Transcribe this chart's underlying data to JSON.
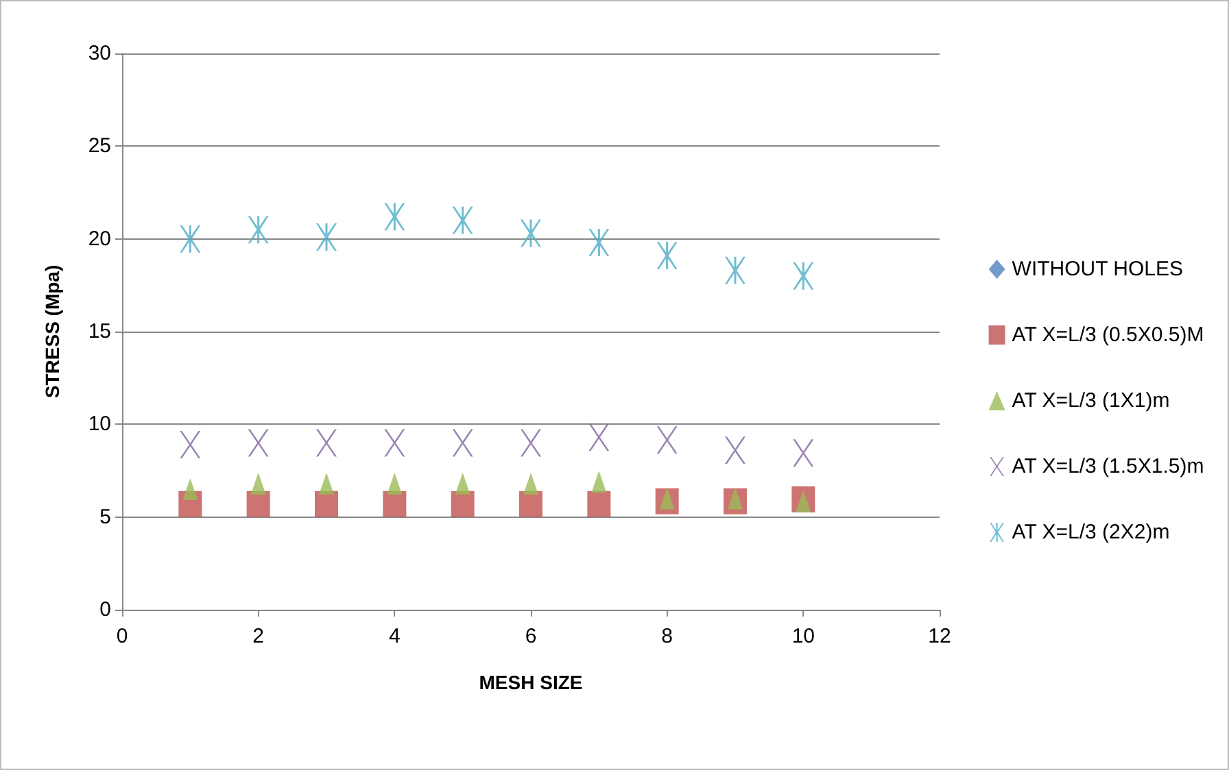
{
  "chart_data": {
    "type": "scatter",
    "xlabel": "MESH SIZE",
    "ylabel": "STRESS (Mpa)",
    "x": [
      1,
      2,
      3,
      4,
      5,
      6,
      7,
      8,
      9,
      10
    ],
    "series": [
      {
        "name": "WITHOUT HOLES",
        "color": "#4f81bd",
        "marker": "diamond",
        "values": [
          null,
          null,
          null,
          null,
          null,
          null,
          null,
          null,
          null,
          null
        ]
      },
      {
        "name": "AT X=L/3 (0.5X0.5)M",
        "color": "#c0504d",
        "marker": "square",
        "values": [
          5.7,
          5.7,
          5.7,
          5.7,
          5.7,
          5.7,
          5.7,
          5.85,
          5.85,
          5.95
        ]
      },
      {
        "name": "AT X=L/3 (1X1)m",
        "color": "#9bbb59",
        "marker": "triangle",
        "values": [
          6.5,
          6.8,
          6.8,
          6.8,
          6.8,
          6.8,
          6.9,
          6.0,
          6.0,
          5.85
        ]
      },
      {
        "name": "AT X=L/3 (1.5X1.5)m",
        "color": "#8064a2",
        "marker": "cross",
        "values": [
          8.9,
          9.0,
          9.0,
          9.0,
          9.0,
          9.0,
          9.3,
          9.15,
          8.6,
          8.45
        ]
      },
      {
        "name": "AT X=L/3 (2X2)m",
        "color": "#4bacc6",
        "marker": "star",
        "values": [
          20.0,
          20.5,
          20.1,
          21.2,
          21.0,
          20.3,
          19.8,
          19.1,
          18.3,
          18.0
        ]
      }
    ],
    "xlim": [
      0,
      12
    ],
    "xticks": [
      0,
      2,
      4,
      6,
      8,
      10,
      12
    ],
    "ylim": [
      0,
      30
    ],
    "yticks": [
      0,
      5,
      10,
      15,
      20,
      25,
      30
    ],
    "grid": "y",
    "legend": "right"
  }
}
